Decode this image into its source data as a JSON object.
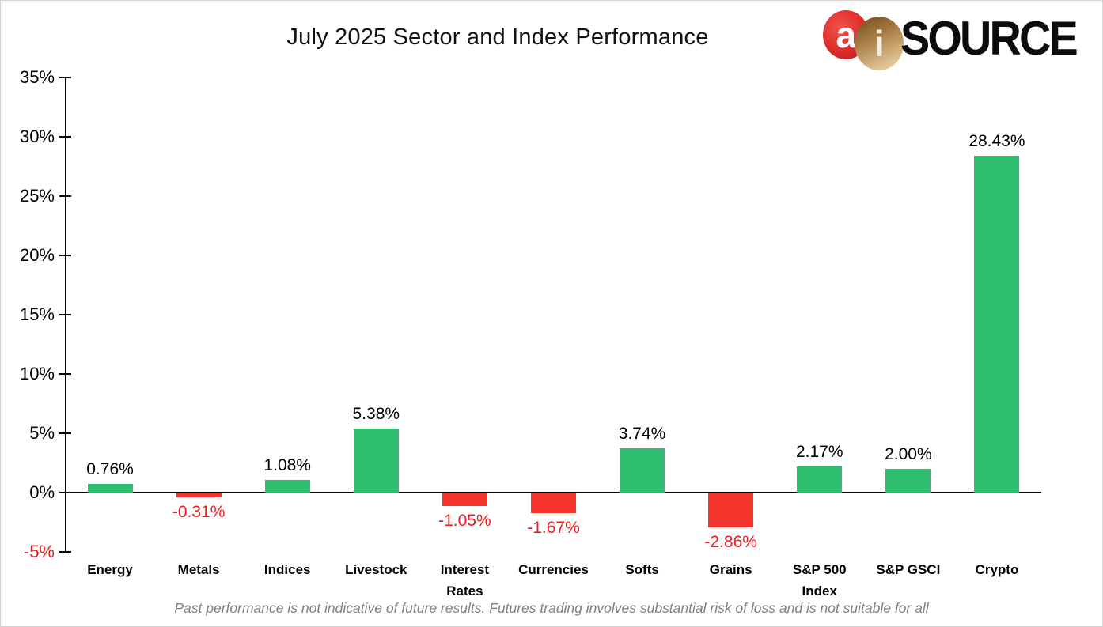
{
  "page": {
    "title": "July 2025 Sector and Index Performance",
    "disclaimer": "Past performance is not indicative of future results. Futures trading involves substantial risk of loss and is not suitable for all"
  },
  "logo": {
    "letter_a": "a",
    "letter_i": "i",
    "wordmark": "SOURCE"
  },
  "chart_data": {
    "type": "bar",
    "title": "July 2025 Sector and Index Performance",
    "categories": [
      "Energy",
      "Metals",
      "Indices",
      "Livestock",
      "Interest Rates",
      "Currencies",
      "Softs",
      "Grains",
      "S&P 500 Index",
      "S&P GSCI",
      "Crypto"
    ],
    "values": [
      0.76,
      -0.31,
      1.08,
      5.38,
      -1.05,
      -1.67,
      3.74,
      -2.86,
      2.17,
      2.0,
      28.43
    ],
    "value_labels": [
      "0.76%",
      "-0.31%",
      "1.08%",
      "5.38%",
      "-1.05%",
      "-1.67%",
      "3.74%",
      "-2.86%",
      "2.17%",
      "2.00%",
      "28.43%"
    ],
    "yticks": [
      "35%",
      "30%",
      "25%",
      "20%",
      "15%",
      "10%",
      "5%",
      "0%",
      "-5%"
    ],
    "ylim": [
      -5,
      35
    ],
    "ytick_step": 5,
    "xlabel": "",
    "ylabel": "",
    "grid": false,
    "legend": null,
    "positive_color": "#2ebd6e",
    "negative_color": "#f5342e",
    "negative_text_color": "#ee1b22",
    "axis_color": "#000000"
  }
}
